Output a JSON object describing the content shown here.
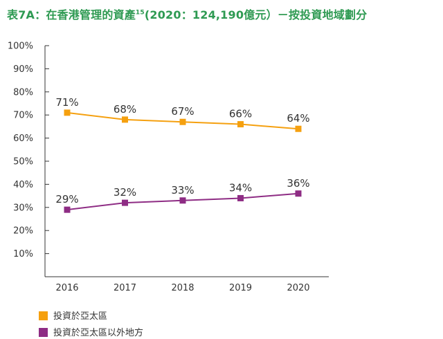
{
  "title": {
    "main": "表7A：在香港管理的資產",
    "superscript": "15",
    "suffix": "(2020：124,190億元）－按投資地域劃分"
  },
  "colors": {
    "title": "#2e9a52",
    "series_1": "#f5a00f",
    "series_2": "#8e2c84",
    "axis": "#333333",
    "text": "#333333"
  },
  "chart_data": {
    "type": "line",
    "categories": [
      "2016",
      "2017",
      "2018",
      "2019",
      "2020"
    ],
    "y_ticks": [
      "10%",
      "20%",
      "30%",
      "40%",
      "50%",
      "60%",
      "70%",
      "80%",
      "90%",
      "100%"
    ],
    "ylim": [
      0,
      100
    ],
    "grid": false,
    "legend_position": "bottom-left",
    "series": [
      {
        "name": "投資於亞太區",
        "values": [
          71,
          68,
          67,
          66,
          64
        ],
        "labels": [
          "71%",
          "68%",
          "67%",
          "66%",
          "64%"
        ],
        "color": "#f5a00f"
      },
      {
        "name": "投資於亞太區以外地方",
        "values": [
          29,
          32,
          33,
          34,
          36
        ],
        "labels": [
          "29%",
          "32%",
          "33%",
          "34%",
          "36%"
        ],
        "color": "#8e2c84"
      }
    ]
  }
}
